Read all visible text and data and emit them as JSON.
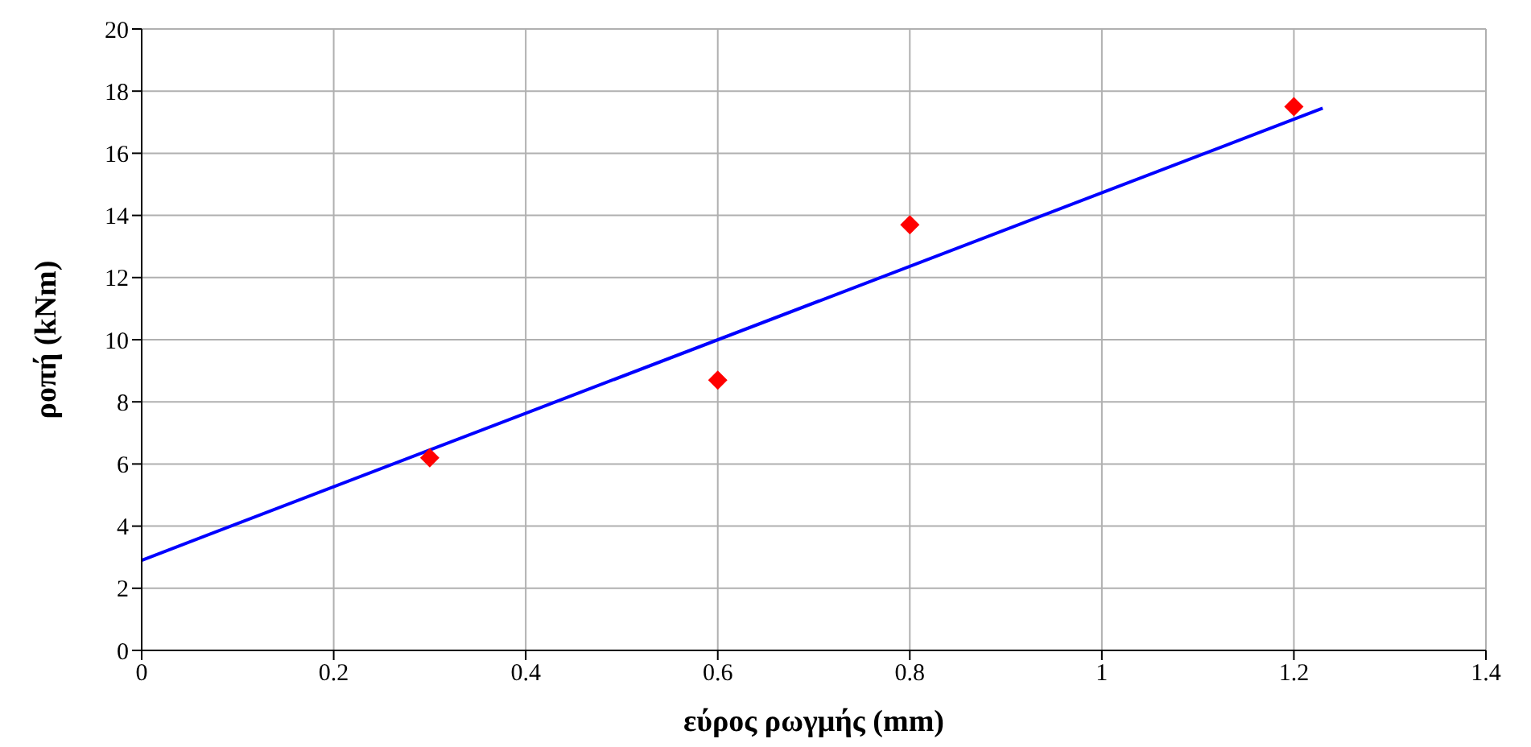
{
  "chart_data": {
    "type": "scatter",
    "xlabel": "εύρος ρωγμής (mm)",
    "ylabel": "ροπή (kNm)",
    "series": [
      {
        "color": "#ff0000",
        "marker": "diamond",
        "x": [
          0.3,
          0.6,
          0.8,
          1.2
        ],
        "values": [
          6.2,
          8.7,
          13.7,
          17.5
        ]
      },
      {
        "type": "line",
        "color": "#0000ff",
        "marker": "none",
        "line_style": "solid",
        "x": [
          0,
          1.23
        ],
        "values": [
          2.9,
          17.45
        ]
      }
    ],
    "xlim": [
      0,
      1.4
    ],
    "xticks": [
      0,
      0.2,
      0.4,
      0.6,
      0.8,
      1,
      1.2,
      1.4
    ],
    "ylim": [
      0,
      20
    ],
    "yticks": [
      0,
      2,
      4,
      6,
      8,
      10,
      12,
      14,
      16,
      18,
      20
    ],
    "grid": true,
    "legend": false
  }
}
